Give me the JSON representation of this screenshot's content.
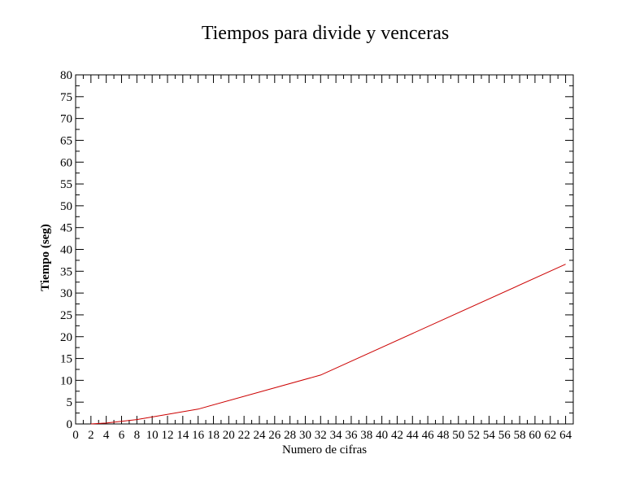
{
  "chart_data": {
    "type": "line",
    "title": "Tiempos para divide y venceras",
    "xlabel": "Numero de cifras",
    "ylabel": "Tiempo (seg)",
    "xlim": [
      0,
      65
    ],
    "ylim": [
      0,
      80
    ],
    "x_ticks": [
      0,
      2,
      4,
      6,
      8,
      10,
      12,
      14,
      16,
      18,
      20,
      22,
      24,
      26,
      28,
      30,
      32,
      34,
      36,
      38,
      40,
      42,
      44,
      46,
      48,
      50,
      52,
      54,
      56,
      58,
      60,
      62,
      64
    ],
    "y_ticks": [
      0,
      5,
      10,
      15,
      20,
      25,
      30,
      35,
      40,
      45,
      50,
      55,
      60,
      65,
      70,
      75,
      80
    ],
    "grid": false,
    "series": [
      {
        "color": "#cc0000",
        "x": [
          2,
          4,
          8,
          16,
          32,
          64
        ],
        "y": [
          0.0,
          0.2,
          1.0,
          3.4,
          11.2,
          36.6
        ]
      }
    ]
  }
}
